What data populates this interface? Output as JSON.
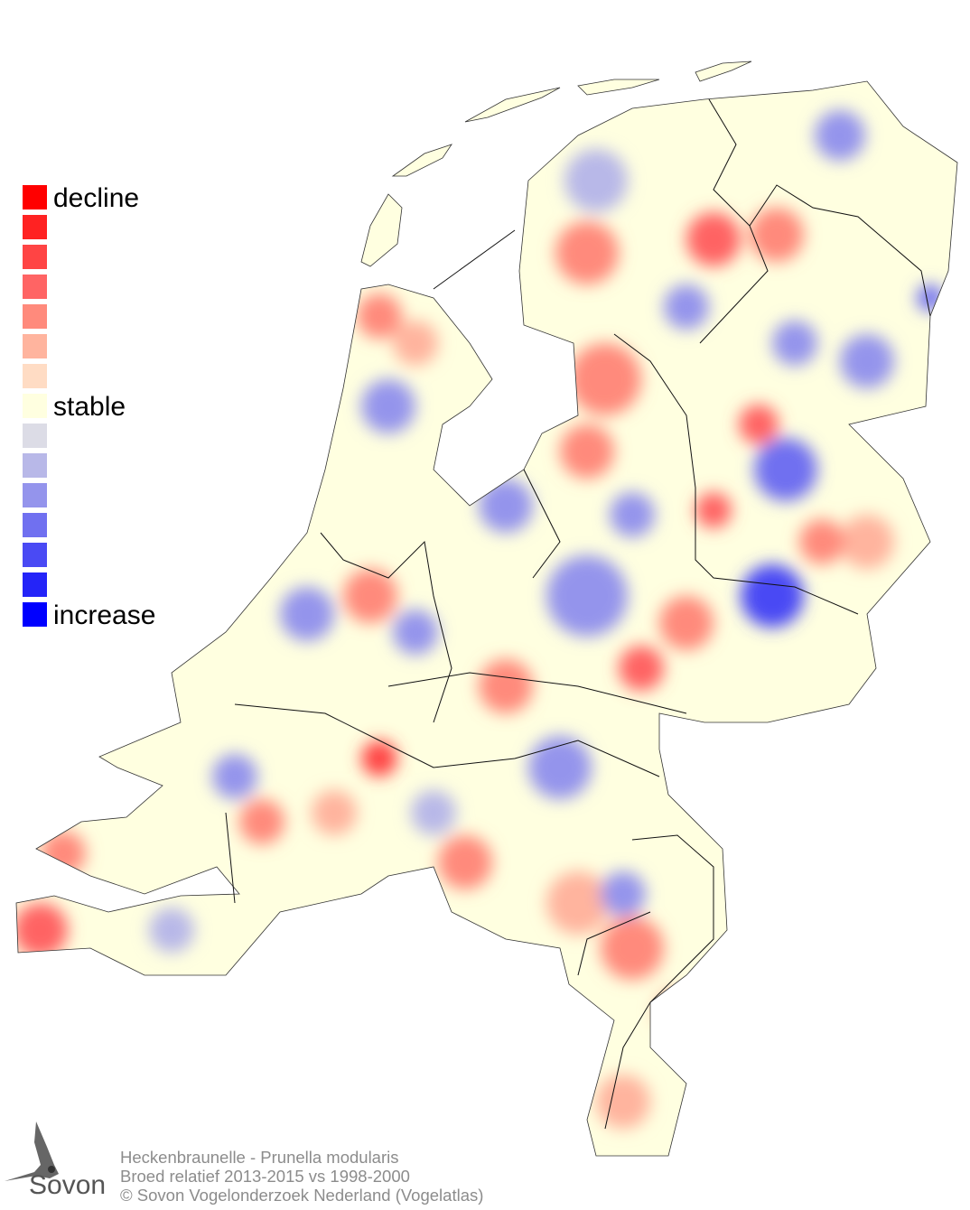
{
  "legend": {
    "labels": {
      "top": "decline",
      "middle": "stable",
      "bottom": "increase"
    },
    "colors": [
      "#ff0000",
      "#ff2222",
      "#ff4444",
      "#ff6464",
      "#ff8a7c",
      "#ffb49e",
      "#ffdcc4",
      "#ffffe0",
      "#dcdce6",
      "#b8b8e8",
      "#9494ec",
      "#7070f0",
      "#4a4af4",
      "#2424f8",
      "#0000ff"
    ]
  },
  "footer": {
    "line1": "Heckenbraunelle - Prunella modularis",
    "line2": "Broed relatief 2013-2015 vs 1998-2000",
    "line3": "© Sovon Vogelonderzoek Nederland (Vogelatlas)"
  },
  "logo": {
    "text": "Sovon"
  }
}
